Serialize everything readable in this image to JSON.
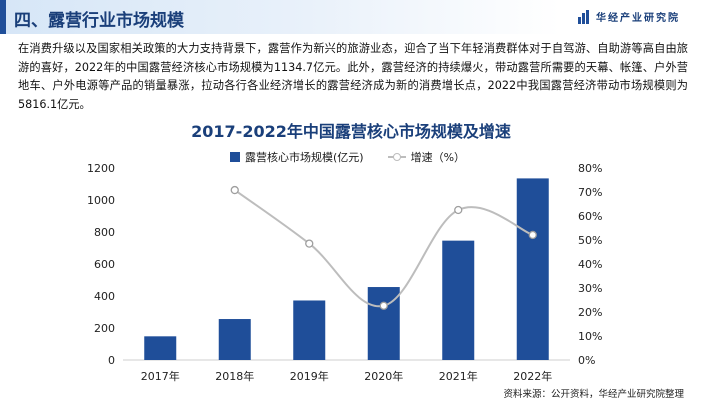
{
  "header": {
    "section_title": "四、露营行业市场规模",
    "brand": "华经产业研究院"
  },
  "intro_text": "在消费升级以及国家相关政策的大力支持背景下，露营作为新兴的旅游业态，迎合了当下年轻消费群体对于自驾游、自助游等高自由旅游的喜好，2022年的中国露营经济核心市场规模为1134.7亿元。此外，露营经济的持续爆火，带动露营所需要的天幕、帐篷、户外营地车、户外电源等产品的销量暴涨，拉动各行各业经济增长的露营经济成为新的消费增长点，2022中我国露营经济带动市场规模则为5816.1亿元。",
  "source": "资料来源：公开资料，华经产业研究院整理",
  "chart_data": {
    "type": "bar",
    "title": "2017-2022年中国露营核心市场规模及增速",
    "categories": [
      "2017年",
      "2018年",
      "2019年",
      "2020年",
      "2021年",
      "2022年"
    ],
    "series": [
      {
        "name": "露营核心市场规模(亿元)",
        "type": "bar",
        "axis": "left",
        "color": "#1f4e99",
        "values": [
          148,
          256,
          372,
          456,
          746,
          1135
        ]
      },
      {
        "name": "增速（%）",
        "type": "line",
        "axis": "right",
        "color": "#bdbdbd",
        "values": [
          null,
          70.8,
          48.5,
          22.6,
          62.5,
          52.1
        ]
      }
    ],
    "ylim_left": [
      0,
      1200
    ],
    "yticks_left": [
      "0",
      "200",
      "400",
      "600",
      "800",
      "1000",
      "1200"
    ],
    "ylim_right": [
      0,
      80
    ],
    "yticks_right": [
      "0%",
      "10%",
      "20%",
      "30%",
      "40%",
      "50%",
      "60%",
      "70%",
      "80%"
    ],
    "legend_position": "top-center",
    "grid": false
  }
}
